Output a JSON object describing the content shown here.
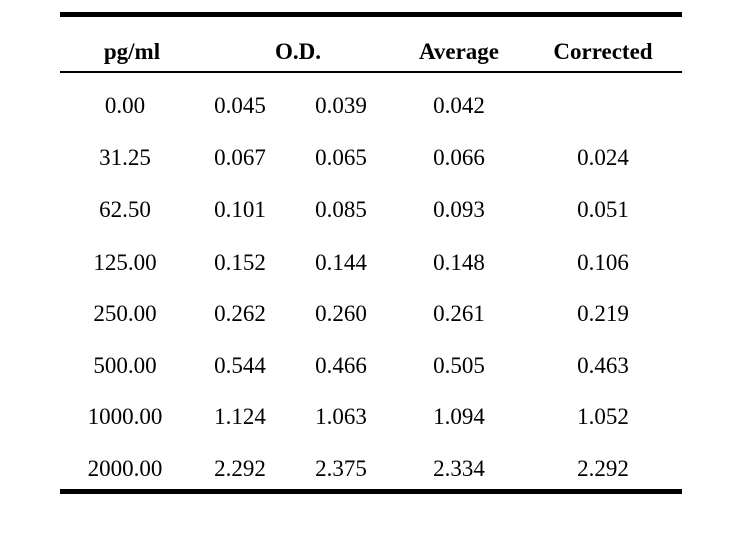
{
  "table": {
    "headers": {
      "concentration": "pg/ml",
      "od": "O.D.",
      "average": "Average",
      "corrected": "Corrected"
    },
    "rows": [
      {
        "conc": "0.00",
        "od1": "0.045",
        "od2": "0.039",
        "avg": "0.042",
        "corr": ""
      },
      {
        "conc": "31.25",
        "od1": "0.067",
        "od2": "0.065",
        "avg": "0.066",
        "corr": "0.024"
      },
      {
        "conc": "62.50",
        "od1": "0.101",
        "od2": "0.085",
        "avg": "0.093",
        "corr": "0.051"
      },
      {
        "conc": "125.00",
        "od1": "0.152",
        "od2": "0.144",
        "avg": "0.148",
        "corr": "0.106"
      },
      {
        "conc": "250.00",
        "od1": "0.262",
        "od2": "0.260",
        "avg": "0.261",
        "corr": "0.219"
      },
      {
        "conc": "500.00",
        "od1": "0.544",
        "od2": "0.466",
        "avg": "0.505",
        "corr": "0.463"
      },
      {
        "conc": "1000.00",
        "od1": "1.124",
        "od2": "1.063",
        "avg": "1.094",
        "corr": "1.052"
      },
      {
        "conc": "2000.00",
        "od1": "2.292",
        "od2": "2.375",
        "avg": "2.334",
        "corr": "2.292"
      }
    ]
  }
}
